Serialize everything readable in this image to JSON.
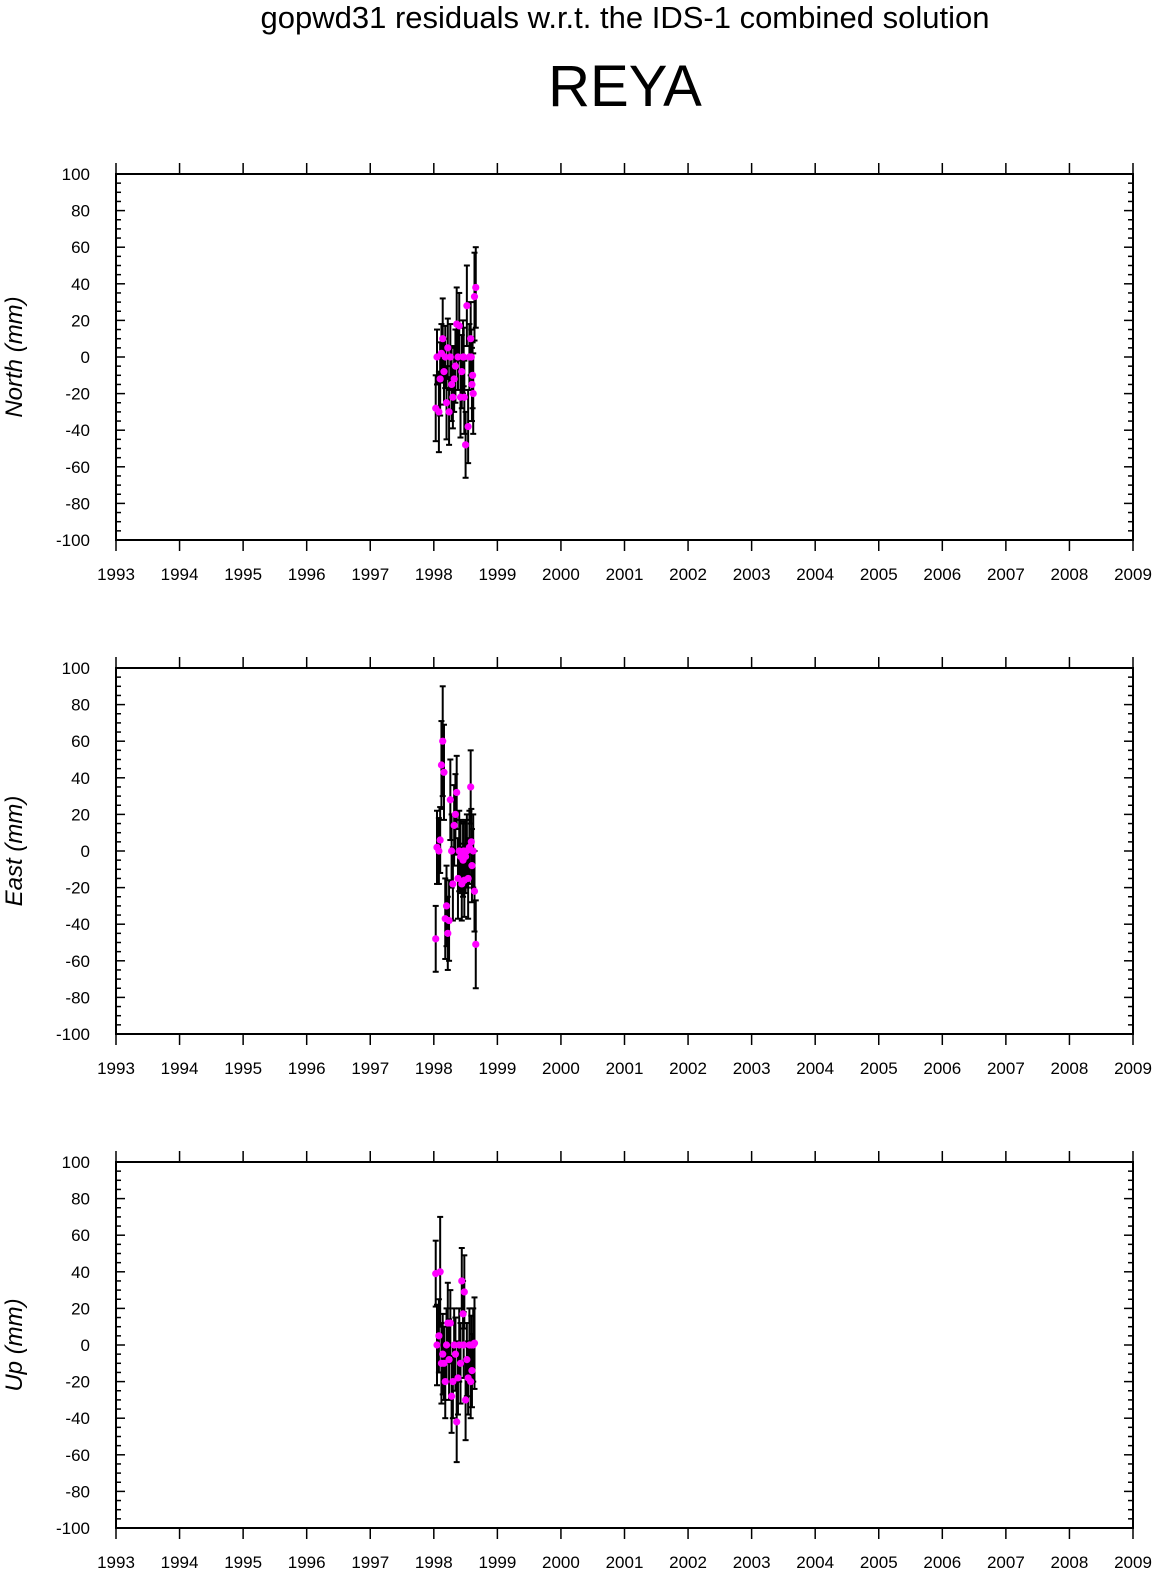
{
  "title": "gopwd31 residuals w.r.t. the IDS-1 combined solution",
  "station": "REYA",
  "chart_data": [
    {
      "type": "scatter",
      "ylabel": "North (mm)",
      "xlim": [
        1993,
        2009
      ],
      "ylim": [
        -100,
        100
      ],
      "x_ticks": [
        "1993",
        "1994",
        "1995",
        "1996",
        "1997",
        "1998",
        "1999",
        "2000",
        "2001",
        "2002",
        "2003",
        "2004",
        "2005",
        "2006",
        "2007",
        "2008",
        "2009"
      ],
      "y_ticks": [
        "100",
        "80",
        "60",
        "40",
        "20",
        "0",
        "-20",
        "-40",
        "-60",
        "-80",
        "-100"
      ],
      "marker_color": "#ff00ff",
      "errorbar_color": "#000000",
      "points": [
        [
          1998.03,
          -28,
          18
        ],
        [
          1998.05,
          0,
          15
        ],
        [
          1998.08,
          -30,
          22
        ],
        [
          1998.1,
          -12,
          20
        ],
        [
          1998.12,
          2,
          16
        ],
        [
          1998.14,
          10,
          22
        ],
        [
          1998.16,
          -8,
          18
        ],
        [
          1998.18,
          0,
          17
        ],
        [
          1998.2,
          -25,
          20
        ],
        [
          1998.22,
          5,
          16
        ],
        [
          1998.24,
          -30,
          18
        ],
        [
          1998.26,
          0,
          18
        ],
        [
          1998.28,
          -15,
          20
        ],
        [
          1998.3,
          -22,
          17
        ],
        [
          1998.32,
          -12,
          18
        ],
        [
          1998.34,
          -5,
          20
        ],
        [
          1998.36,
          18,
          20
        ],
        [
          1998.38,
          0,
          18
        ],
        [
          1998.4,
          17,
          18
        ],
        [
          1998.42,
          -22,
          22
        ],
        [
          1998.44,
          -8,
          20
        ],
        [
          1998.46,
          0,
          20
        ],
        [
          1998.48,
          -22,
          20
        ],
        [
          1998.5,
          -48,
          18
        ],
        [
          1998.52,
          28,
          22
        ],
        [
          1998.54,
          -38,
          20
        ],
        [
          1998.56,
          0,
          18
        ],
        [
          1998.58,
          10,
          20
        ],
        [
          1998.6,
          -15,
          20
        ],
        [
          1998.62,
          -20,
          22
        ],
        [
          1998.64,
          33,
          24
        ],
        [
          1998.66,
          38,
          22
        ],
        [
          1998.61,
          -10,
          18
        ],
        [
          1998.59,
          0,
          15
        ],
        [
          1998.47,
          0,
          16
        ]
      ]
    },
    {
      "type": "scatter",
      "ylabel": "East (mm)",
      "xlim": [
        1993,
        2009
      ],
      "ylim": [
        -100,
        100
      ],
      "x_ticks": [
        "1993",
        "1994",
        "1995",
        "1996",
        "1997",
        "1998",
        "1999",
        "2000",
        "2001",
        "2002",
        "2003",
        "2004",
        "2005",
        "2006",
        "2007",
        "2008",
        "2009"
      ],
      "y_ticks": [
        "100",
        "80",
        "60",
        "40",
        "20",
        "0",
        "-20",
        "-40",
        "-60",
        "-80",
        "-100"
      ],
      "marker_color": "#ff00ff",
      "errorbar_color": "#000000",
      "points": [
        [
          1998.03,
          -48,
          18
        ],
        [
          1998.05,
          2,
          20
        ],
        [
          1998.08,
          0,
          18
        ],
        [
          1998.1,
          6,
          18
        ],
        [
          1998.12,
          47,
          24
        ],
        [
          1998.14,
          60,
          30
        ],
        [
          1998.16,
          43,
          26
        ],
        [
          1998.18,
          -37,
          22
        ],
        [
          1998.2,
          -30,
          22
        ],
        [
          1998.22,
          -45,
          20
        ],
        [
          1998.24,
          -38,
          22
        ],
        [
          1998.26,
          28,
          22
        ],
        [
          1998.28,
          0,
          20
        ],
        [
          1998.3,
          -18,
          20
        ],
        [
          1998.32,
          14,
          22
        ],
        [
          1998.34,
          20,
          22
        ],
        [
          1998.36,
          32,
          20
        ],
        [
          1998.38,
          -15,
          22
        ],
        [
          1998.4,
          0,
          22
        ],
        [
          1998.42,
          -3,
          20
        ],
        [
          1998.44,
          -18,
          20
        ],
        [
          1998.46,
          -5,
          20
        ],
        [
          1998.48,
          -16,
          20
        ],
        [
          1998.5,
          -3,
          20
        ],
        [
          1998.52,
          0,
          20
        ],
        [
          1998.54,
          -15,
          22
        ],
        [
          1998.56,
          2,
          20
        ],
        [
          1998.58,
          35,
          20
        ],
        [
          1998.6,
          -8,
          20
        ],
        [
          1998.62,
          0,
          20
        ],
        [
          1998.64,
          -22,
          22
        ],
        [
          1998.66,
          -51,
          24
        ],
        [
          1998.59,
          5,
          18
        ],
        [
          1998.47,
          0,
          16
        ]
      ]
    },
    {
      "type": "scatter",
      "ylabel": "Up (mm)",
      "xlim": [
        1993,
        2009
      ],
      "ylim": [
        -100,
        100
      ],
      "x_ticks": [
        "1993",
        "1994",
        "1995",
        "1996",
        "1997",
        "1998",
        "1999",
        "2000",
        "2001",
        "2002",
        "2003",
        "2004",
        "2005",
        "2006",
        "2007",
        "2008",
        "2009"
      ],
      "y_ticks": [
        "100",
        "80",
        "60",
        "40",
        "20",
        "0",
        "-20",
        "-40",
        "-60",
        "-80",
        "-100"
      ],
      "marker_color": "#ff00ff",
      "errorbar_color": "#000000",
      "points": [
        [
          1998.03,
          39,
          18
        ],
        [
          1998.05,
          0,
          22
        ],
        [
          1998.08,
          5,
          20
        ],
        [
          1998.1,
          40,
          30
        ],
        [
          1998.12,
          -10,
          22
        ],
        [
          1998.14,
          -5,
          22
        ],
        [
          1998.16,
          -10,
          20
        ],
        [
          1998.18,
          -20,
          20
        ],
        [
          1998.2,
          0,
          20
        ],
        [
          1998.22,
          12,
          22
        ],
        [
          1998.24,
          -8,
          22
        ],
        [
          1998.26,
          12,
          18
        ],
        [
          1998.28,
          -28,
          20
        ],
        [
          1998.3,
          -20,
          20
        ],
        [
          1998.32,
          0,
          20
        ],
        [
          1998.34,
          -5,
          20
        ],
        [
          1998.36,
          -42,
          22
        ],
        [
          1998.38,
          -18,
          20
        ],
        [
          1998.4,
          0,
          20
        ],
        [
          1998.42,
          -10,
          22
        ],
        [
          1998.44,
          35,
          18
        ],
        [
          1998.46,
          17,
          18
        ],
        [
          1998.48,
          29,
          20
        ],
        [
          1998.5,
          -30,
          22
        ],
        [
          1998.52,
          -8,
          20
        ],
        [
          1998.54,
          -18,
          20
        ],
        [
          1998.56,
          0,
          20
        ],
        [
          1998.58,
          -20,
          20
        ],
        [
          1998.6,
          -14,
          20
        ],
        [
          1998.62,
          0,
          20
        ],
        [
          1998.64,
          1,
          25
        ],
        [
          1998.47,
          0,
          18
        ],
        [
          1998.59,
          0,
          16
        ]
      ]
    }
  ]
}
